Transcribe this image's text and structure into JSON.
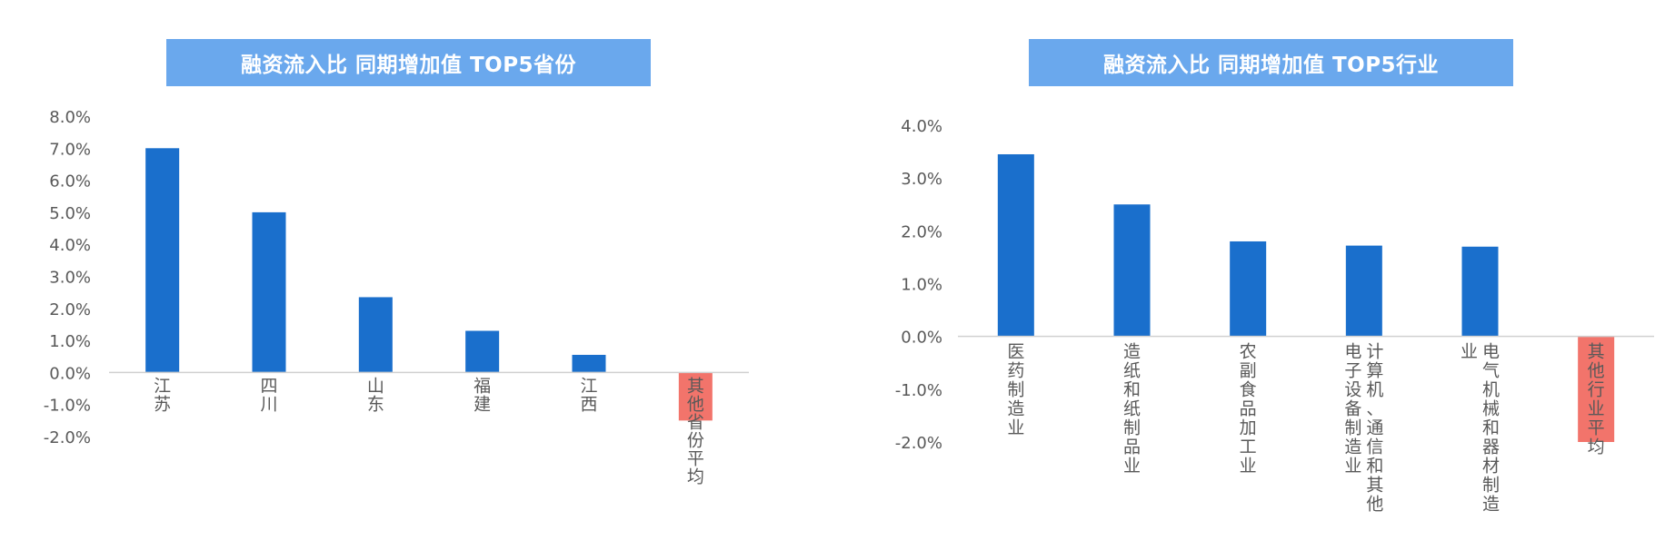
{
  "colors": {
    "bar": "#1a6fcc",
    "highlight_bar": "#f2746b",
    "title_bg": "#6aa8ed",
    "title_text": "#ffffff",
    "axis": "#d0d0d0",
    "tick_text": "#595959"
  },
  "chart_data": [
    {
      "type": "bar",
      "title": "融资流入比 同期增加值 TOP5省份",
      "categories": [
        "江苏",
        "四川",
        "山东",
        "福建",
        "江西",
        "其他省份平均"
      ],
      "values": [
        7.0,
        5.0,
        2.35,
        1.3,
        0.55,
        -1.5
      ],
      "highlight_index": 5,
      "ylim": [
        -2.0,
        8.0
      ],
      "yticks": [
        "8.0%",
        "7.0%",
        "6.0%",
        "5.0%",
        "4.0%",
        "3.0%",
        "2.0%",
        "1.0%",
        "0.0%",
        "-1.0%",
        "-2.0%"
      ],
      "ytick_values": [
        8,
        7,
        6,
        5,
        4,
        3,
        2,
        1,
        0,
        -1,
        -2
      ],
      "xlabel": "",
      "ylabel": "",
      "grid": false,
      "legend": "none"
    },
    {
      "type": "bar",
      "title": "融资流入比 同期增加值 TOP5行业",
      "categories": [
        "医药制造业",
        "造纸和纸制品业",
        "农副食品加工业",
        "计算机、通信和其他电子设备制造业",
        "电气机械和器材制造业",
        "其他行业平均"
      ],
      "values": [
        3.45,
        2.5,
        1.8,
        1.72,
        1.7,
        -2.0
      ],
      "highlight_index": 5,
      "ylim": [
        -2.0,
        4.0
      ],
      "yticks": [
        "4.0%",
        "3.0%",
        "2.0%",
        "1.0%",
        "0.0%",
        "-1.0%",
        "-2.0%"
      ],
      "ytick_values": [
        4,
        3,
        2,
        1,
        0,
        -1,
        -2
      ],
      "xlabel": "",
      "ylabel": "",
      "grid": false,
      "legend": "none"
    }
  ]
}
